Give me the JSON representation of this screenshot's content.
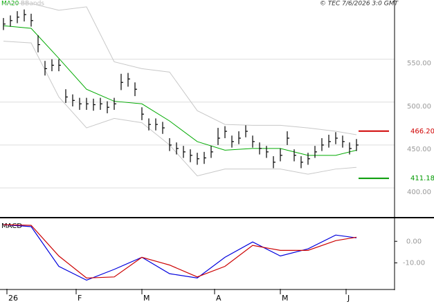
{
  "chart_data": [
    {
      "type": "ohlc",
      "source": "© TEC 7/6/2026 3:0 GMT",
      "xlim": [
        -0.5,
        56.5
      ],
      "ylim": [
        367,
        619
      ],
      "yticks": [
        {
          "value": 400,
          "label": "400.00"
        },
        {
          "value": 450,
          "label": "450.00"
        },
        {
          "value": 500,
          "label": "500.00"
        },
        {
          "value": 550,
          "label": "550.00"
        }
      ],
      "grid": true,
      "bars": {
        "color": "#000000",
        "close": [
          591,
          595,
          599,
          602,
          595,
          567,
          539,
          543,
          543,
          506,
          502,
          498,
          498,
          497,
          498,
          494,
          498,
          523,
          527,
          515,
          486,
          474,
          474,
          470,
          450,
          446,
          442,
          438,
          434,
          435,
          442,
          458,
          466,
          454,
          458,
          466,
          454,
          446,
          442,
          430,
          438,
          458,
          438,
          430,
          434,
          442,
          450,
          454,
          458,
          454,
          446,
          450
        ],
        "high": [
          598,
          601,
          606,
          608,
          603,
          578,
          548,
          550,
          550,
          515,
          509,
          505,
          505,
          504,
          505,
          501,
          505,
          533,
          534,
          523,
          494,
          481,
          481,
          477,
          458,
          453,
          449,
          445,
          441,
          442,
          449,
          470,
          472,
          461,
          466,
          473,
          461,
          453,
          449,
          437,
          446,
          466,
          445,
          437,
          441,
          449,
          458,
          462,
          465,
          461,
          453,
          457
        ],
        "low": [
          584,
          588,
          592,
          594,
          588,
          558,
          531,
          536,
          536,
          499,
          495,
          491,
          491,
          490,
          491,
          487,
          491,
          514,
          518,
          507,
          479,
          467,
          467,
          463,
          443,
          439,
          435,
          430,
          427,
          428,
          435,
          450,
          458,
          447,
          451,
          459,
          447,
          439,
          435,
          423,
          431,
          450,
          431,
          423,
          427,
          435,
          443,
          447,
          451,
          447,
          439,
          443
        ]
      },
      "series": [
        {
          "name": "MA20",
          "color": "#00aa00",
          "x": [
            0,
            4,
            8,
            12,
            16,
            20,
            24,
            28,
            32,
            36,
            40,
            44,
            48,
            51
          ],
          "values": [
            589,
            586,
            551,
            515,
            501,
            498,
            478,
            454,
            444,
            446,
            446,
            438,
            438,
            444
          ]
        }
      ],
      "bands": {
        "name": "BBands",
        "color": "#c8c8c8",
        "x": [
          0,
          4,
          8,
          12,
          16,
          20,
          24,
          28,
          32,
          36,
          40,
          44,
          48,
          51
        ],
        "upper": [
          615,
          615,
          607,
          611,
          547,
          539,
          535,
          490,
          474,
          473,
          473,
          470,
          466,
          462
        ],
        "lower": [
          571,
          569,
          506,
          470,
          481,
          476,
          450,
          414,
          422,
          422,
          422,
          416,
          422,
          424
        ]
      },
      "levels": [
        {
          "value": 466.2,
          "label": "466.20",
          "color": "#d00000"
        },
        {
          "value": 411.18,
          "label": "411.18",
          "color": "#009900"
        }
      ]
    },
    {
      "type": "line",
      "title": "MACD",
      "xlim": [
        -0.5,
        56.5
      ],
      "ylim": [
        -22,
        10
      ],
      "yticks": [
        {
          "value": 0,
          "label": "0.00"
        },
        {
          "value": -10,
          "label": "-10.00"
        }
      ],
      "xticks": [
        {
          "value": 0.5,
          "label": "26"
        },
        {
          "value": 10.5,
          "label": "F"
        },
        {
          "value": 20,
          "label": "M"
        },
        {
          "value": 30.5,
          "label": "A"
        },
        {
          "value": 40,
          "label": "M"
        },
        {
          "value": 49.5,
          "label": "J"
        }
      ],
      "series": [
        {
          "color": "#0000dd",
          "x": [
            0,
            4,
            8,
            12,
            16,
            20,
            24,
            28,
            32,
            36,
            40,
            44,
            48,
            51
          ],
          "values": [
            7.7,
            6.8,
            -11.6,
            -18,
            -13,
            -7.4,
            -15,
            -17,
            -7.4,
            -0.3,
            -6.8,
            -3.5,
            2.9,
            1.6
          ]
        },
        {
          "color": "#cc0000",
          "x": [
            0,
            4,
            8,
            12,
            16,
            20,
            24,
            28,
            32,
            36,
            40,
            44,
            48,
            51
          ],
          "values": [
            7.7,
            7.4,
            -6.8,
            -17,
            -16.5,
            -7.4,
            -11,
            -16.5,
            -11.6,
            -1.9,
            -4.2,
            -4.2,
            0.3,
            1.9
          ]
        }
      ]
    }
  ]
}
